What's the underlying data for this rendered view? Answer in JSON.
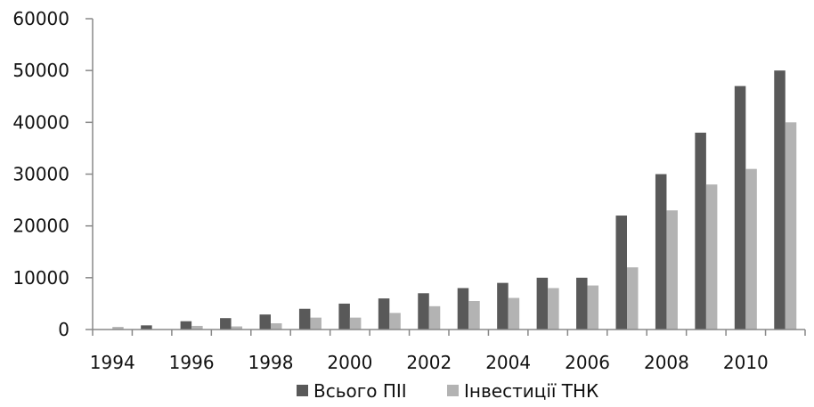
{
  "chart_data": {
    "type": "bar",
    "categories": [
      "1994",
      "1995",
      "1996",
      "1997",
      "1998",
      "1999",
      "2000",
      "2001",
      "2002",
      "2003",
      "2004",
      "2005",
      "2006",
      "2007",
      "2008",
      "2009",
      "2010",
      "2011"
    ],
    "x_tick_labels": [
      "1994",
      "1996",
      "1998",
      "2000",
      "2002",
      "2004",
      "2006",
      "2008",
      "2010"
    ],
    "y_tick_labels": [
      "0",
      "10000",
      "20000",
      "30000",
      "40000",
      "50000",
      "60000"
    ],
    "ylim": [
      0,
      60000
    ],
    "grid": false,
    "legend_position": "bottom",
    "series": [
      {
        "name": "Всього ПІІ",
        "color": "#595959",
        "values": [
          0,
          800,
          1600,
          2200,
          2900,
          4000,
          5000,
          6000,
          7000,
          8000,
          9000,
          10000,
          10000,
          22000,
          30000,
          38000,
          47000,
          50000
        ]
      },
      {
        "name": "Інвестиції ТНК",
        "color": "#b3b3b3",
        "values": [
          500,
          0,
          700,
          600,
          1200,
          2300,
          2300,
          3200,
          4500,
          5500,
          6100,
          8000,
          8500,
          12000,
          23000,
          28000,
          31000,
          40000
        ]
      }
    ]
  }
}
